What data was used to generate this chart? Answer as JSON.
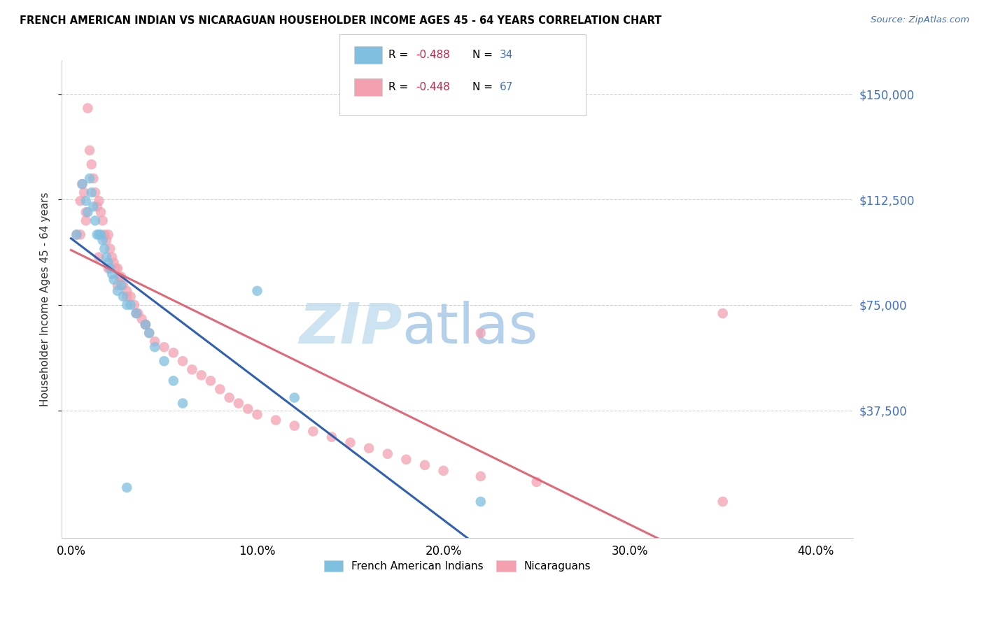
{
  "title": "FRENCH AMERICAN INDIAN VS NICARAGUAN HOUSEHOLDER INCOME AGES 45 - 64 YEARS CORRELATION CHART",
  "source": "Source: ZipAtlas.com",
  "ylabel": "Householder Income Ages 45 - 64 years",
  "xlabel_ticks": [
    "0.0%",
    "10.0%",
    "20.0%",
    "30.0%",
    "40.0%"
  ],
  "xlabel_vals": [
    0.0,
    0.1,
    0.2,
    0.3,
    0.4
  ],
  "ylabel_ticks": [
    "$37,500",
    "$75,000",
    "$112,500",
    "$150,000"
  ],
  "ylabel_vals": [
    37500,
    75000,
    112500,
    150000
  ],
  "xlim": [
    -0.005,
    0.42
  ],
  "ylim": [
    -8000,
    162000
  ],
  "legend_labels": [
    "French American Indians",
    "Nicaraguans"
  ],
  "legend_R": [
    -0.488,
    -0.448
  ],
  "legend_N": [
    34,
    67
  ],
  "blue_color": "#7fbfdf",
  "pink_color": "#f4a0b0",
  "blue_line_color": "#3060b0",
  "pink_line_color": "#e06878",
  "watermark_zip": "ZIP",
  "watermark_atlas": "atlas",
  "blue_scatter_x": [
    0.003,
    0.006,
    0.008,
    0.009,
    0.01,
    0.011,
    0.012,
    0.013,
    0.014,
    0.015,
    0.016,
    0.017,
    0.018,
    0.019,
    0.02,
    0.021,
    0.022,
    0.023,
    0.025,
    0.027,
    0.028,
    0.03,
    0.032,
    0.035,
    0.04,
    0.042,
    0.045,
    0.05,
    0.055,
    0.06,
    0.1,
    0.12,
    0.03,
    0.22
  ],
  "blue_scatter_y": [
    100000,
    118000,
    112000,
    108000,
    120000,
    115000,
    110000,
    105000,
    100000,
    100000,
    100000,
    98000,
    95000,
    92000,
    90000,
    88000,
    86000,
    84000,
    80000,
    82000,
    78000,
    75000,
    75000,
    72000,
    68000,
    65000,
    60000,
    55000,
    48000,
    40000,
    80000,
    42000,
    10000,
    5000
  ],
  "pink_scatter_x": [
    0.003,
    0.005,
    0.006,
    0.007,
    0.008,
    0.009,
    0.01,
    0.011,
    0.012,
    0.013,
    0.014,
    0.015,
    0.016,
    0.017,
    0.018,
    0.019,
    0.02,
    0.021,
    0.022,
    0.023,
    0.024,
    0.025,
    0.026,
    0.027,
    0.028,
    0.03,
    0.032,
    0.034,
    0.036,
    0.038,
    0.04,
    0.042,
    0.045,
    0.05,
    0.055,
    0.06,
    0.065,
    0.07,
    0.075,
    0.08,
    0.085,
    0.09,
    0.095,
    0.1,
    0.11,
    0.12,
    0.13,
    0.14,
    0.15,
    0.16,
    0.17,
    0.18,
    0.19,
    0.2,
    0.22,
    0.25,
    0.35,
    0.005,
    0.008,
    0.015,
    0.02,
    0.025,
    0.03,
    0.035,
    0.04,
    0.22,
    0.35
  ],
  "pink_scatter_y": [
    100000,
    112000,
    118000,
    115000,
    108000,
    145000,
    130000,
    125000,
    120000,
    115000,
    110000,
    112000,
    108000,
    105000,
    100000,
    98000,
    100000,
    95000,
    92000,
    90000,
    88000,
    88000,
    85000,
    85000,
    82000,
    80000,
    78000,
    75000,
    72000,
    70000,
    68000,
    65000,
    62000,
    60000,
    58000,
    55000,
    52000,
    50000,
    48000,
    45000,
    42000,
    40000,
    38000,
    36000,
    34000,
    32000,
    30000,
    28000,
    26000,
    24000,
    22000,
    20000,
    18000,
    16000,
    14000,
    12000,
    5000,
    100000,
    105000,
    92000,
    88000,
    82000,
    78000,
    72000,
    68000,
    65000,
    72000
  ]
}
